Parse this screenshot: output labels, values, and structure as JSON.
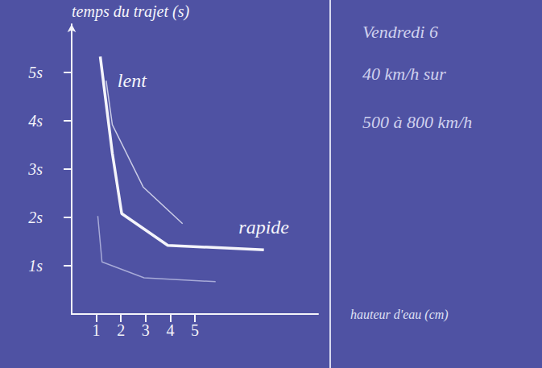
{
  "chart_data": {
    "type": "line",
    "ylabel": "temps du trajet (s)",
    "xlabel": "hauteur d'eau (cm)",
    "xlim": [
      0,
      10
    ],
    "xticks": [
      1,
      2,
      3,
      4,
      5
    ],
    "ylim": [
      0,
      6
    ],
    "yticks": [
      {
        "value": 1,
        "label": "1s"
      },
      {
        "value": 2,
        "label": "2s"
      },
      {
        "value": 3,
        "label": "3s"
      },
      {
        "value": 4,
        "label": "4s"
      },
      {
        "value": 5,
        "label": "5s"
      }
    ],
    "grid": false,
    "series": [
      {
        "name": "lent",
        "color": "#c9cbe6",
        "x": [
          1.4,
          1.65,
          2.9,
          4.5
        ],
        "values": [
          4.83,
          3.92,
          2.63,
          1.87
        ]
      },
      {
        "name": "rapide",
        "color": "#f4f4fa",
        "x": [
          1.16,
          1.65,
          2.03,
          3.9,
          7.8
        ],
        "values": [
          5.33,
          3.33,
          2.08,
          1.42,
          1.33
        ]
      },
      {
        "color": "#a8abd8",
        "x": [
          1.06,
          1.23,
          2.94,
          5.84
        ],
        "values": [
          2.03,
          1.08,
          0.75,
          0.67
        ]
      }
    ],
    "notes": [
      "Vendredi 6",
      "40 km/h sur",
      "500 à 800 km/h"
    ]
  }
}
